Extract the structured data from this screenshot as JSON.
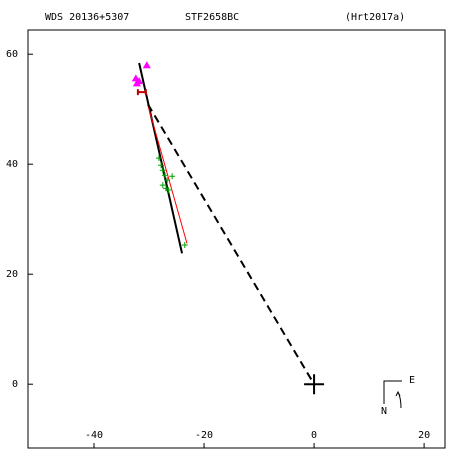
{
  "chart_data": {
    "type": "scatter",
    "header": [
      "WDS 20136+5307",
      "STF2658BC",
      "(Hrt2017a)"
    ],
    "xlim": [
      -52,
      23.8
    ],
    "ylim": [
      -11.6,
      64.4
    ],
    "xticks": [
      -40,
      -20,
      0,
      20
    ],
    "yticks": [
      0,
      20,
      40,
      60
    ],
    "series": [
      {
        "color": "#00a000",
        "marker": "plus",
        "x": [
          -28.2,
          -27.8,
          -27.5,
          -27.1,
          -26.7,
          -27.5,
          -26.9,
          -26.5,
          -25.8,
          -23.5
        ],
        "values": [
          41.1,
          39.8,
          38.9,
          38.0,
          37.1,
          36.2,
          35.6,
          35.3,
          37.8,
          25.3
        ]
      },
      {
        "color": "#ff00ff",
        "marker": "triangle",
        "x": [
          -32.4,
          -32.2,
          -31.8,
          -30.4
        ],
        "values": [
          55.6,
          54.7,
          55.1,
          58.0
        ]
      },
      {
        "color": "#c00000",
        "marker": "ibar",
        "x": [
          -31.3
        ],
        "values": [
          53.1
        ]
      }
    ],
    "lines": [
      {
        "color": "#000000",
        "dash": false,
        "width": 2,
        "x": [
          -31.8,
          -24.0
        ],
        "values": [
          58.4,
          23.8
        ]
      },
      {
        "color": "#ff0000",
        "dash": false,
        "width": 1,
        "x": [
          -30.2,
          -23.1
        ],
        "values": [
          50.7,
          25.6
        ]
      },
      {
        "color": "#000000",
        "dash": true,
        "width": 2,
        "x": [
          -30.2,
          0
        ],
        "values": [
          50.9,
          0
        ]
      }
    ],
    "origin": [
      0,
      0
    ],
    "compass": [
      "N",
      "E"
    ]
  }
}
